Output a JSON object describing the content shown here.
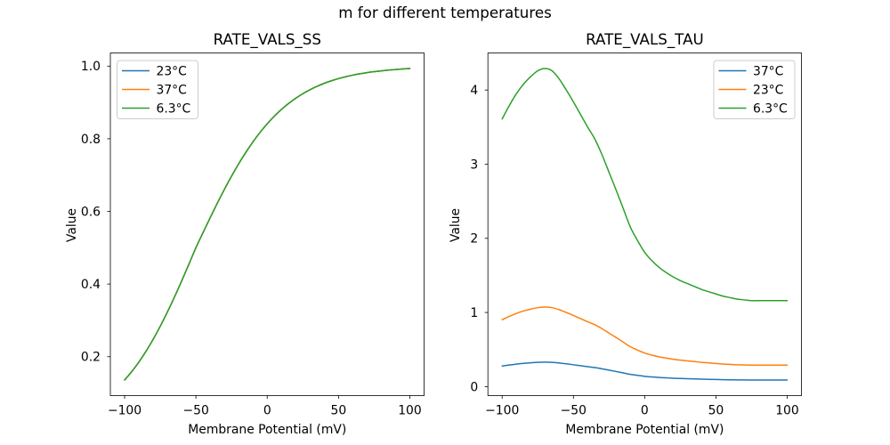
{
  "figure": {
    "suptitle": "m for different temperatures",
    "background": "#ffffff",
    "text_color": "#000000"
  },
  "chart_data": [
    {
      "type": "line",
      "title": "RATE_VALS_SS",
      "xlabel": "Membrane Potential (mV)",
      "ylabel": "Value",
      "xlim": [
        -110,
        110
      ],
      "ylim": [
        0.0928,
        1.0362
      ],
      "xticks": [
        -100,
        -50,
        0,
        50,
        100
      ],
      "xtick_labels": [
        "−100",
        "−50",
        "0",
        "50",
        "100"
      ],
      "yticks": [
        0.2,
        0.4,
        0.6,
        0.8,
        1.0
      ],
      "ytick_labels": [
        "0.2",
        "0.4",
        "0.6",
        "0.8",
        "1.0"
      ],
      "grid": false,
      "legend": {
        "loc": "upper left"
      },
      "x_start": -100,
      "x_step": 5,
      "series": [
        {
          "name": "23°C",
          "color": "#1f77b4",
          "values": [
            0.1357,
            0.1589,
            0.1852,
            0.2148,
            0.2477,
            0.2838,
            0.3229,
            0.3645,
            0.4084,
            0.4538,
            0.5,
            0.5416,
            0.5826,
            0.6225,
            0.6608,
            0.6971,
            0.731,
            0.7625,
            0.7914,
            0.8176,
            0.8411,
            0.8622,
            0.8808,
            0.8972,
            0.9116,
            0.9241,
            0.935,
            0.9444,
            0.9526,
            0.9596,
            0.9656,
            0.9707,
            0.9751,
            0.9788,
            0.982,
            0.9847,
            0.987,
            0.989,
            0.9907,
            0.9921,
            0.9933
          ]
        },
        {
          "name": "37°C",
          "color": "#ff7f0e",
          "values": [
            0.1357,
            0.1589,
            0.1852,
            0.2148,
            0.2477,
            0.2838,
            0.3229,
            0.3645,
            0.4084,
            0.4538,
            0.5,
            0.5416,
            0.5826,
            0.6225,
            0.6608,
            0.6971,
            0.731,
            0.7625,
            0.7914,
            0.8176,
            0.8411,
            0.8622,
            0.8808,
            0.8972,
            0.9116,
            0.9241,
            0.935,
            0.9444,
            0.9526,
            0.9596,
            0.9656,
            0.9707,
            0.9751,
            0.9788,
            0.982,
            0.9847,
            0.987,
            0.989,
            0.9907,
            0.9921,
            0.9933
          ]
        },
        {
          "name": "6.3°C",
          "color": "#2ca02c",
          "values": [
            0.1357,
            0.1589,
            0.1852,
            0.2148,
            0.2477,
            0.2838,
            0.3229,
            0.3645,
            0.4084,
            0.4538,
            0.5,
            0.5416,
            0.5826,
            0.6225,
            0.6608,
            0.6971,
            0.731,
            0.7625,
            0.7914,
            0.8176,
            0.8411,
            0.8622,
            0.8808,
            0.8972,
            0.9116,
            0.9241,
            0.935,
            0.9444,
            0.9526,
            0.9596,
            0.9656,
            0.9707,
            0.9751,
            0.9788,
            0.982,
            0.9847,
            0.987,
            0.989,
            0.9907,
            0.9921,
            0.9933
          ]
        }
      ]
    },
    {
      "type": "line",
      "title": "RATE_VALS_TAU",
      "xlabel": "Membrane Potential (mV)",
      "ylabel": "Value",
      "xlim": [
        -110,
        110
      ],
      "ylim": [
        -0.121,
        4.5
      ],
      "xticks": [
        -100,
        -50,
        0,
        50,
        100
      ],
      "xtick_labels": [
        "−100",
        "−50",
        "0",
        "50",
        "100"
      ],
      "yticks": [
        0,
        1,
        2,
        3,
        4
      ],
      "ytick_labels": [
        "0",
        "1",
        "2",
        "3",
        "4"
      ],
      "grid": false,
      "legend": {
        "loc": "upper right"
      },
      "x_start": -100,
      "x_step": 5,
      "series": [
        {
          "name": "37°C",
          "color": "#1f77b4",
          "values": [
            0.2777,
            0.2915,
            0.3038,
            0.3138,
            0.3215,
            0.3277,
            0.33,
            0.3277,
            0.3192,
            0.3077,
            0.2954,
            0.2823,
            0.2692,
            0.2569,
            0.2408,
            0.2223,
            0.2038,
            0.1846,
            0.1654,
            0.1515,
            0.1392,
            0.1308,
            0.1238,
            0.1185,
            0.1138,
            0.11,
            0.1069,
            0.1038,
            0.1008,
            0.0985,
            0.0962,
            0.0938,
            0.0923,
            0.0908,
            0.09,
            0.0892,
            0.0892,
            0.0892,
            0.0892,
            0.0892,
            0.0892
          ]
        },
        {
          "name": "23°C",
          "color": "#ff7f0e",
          "values": [
            0.9025,
            0.9475,
            0.9875,
            1.02,
            1.045,
            1.065,
            1.0725,
            1.065,
            1.0375,
            1.0,
            0.96,
            0.9175,
            0.875,
            0.835,
            0.7825,
            0.7225,
            0.6625,
            0.6,
            0.5375,
            0.4925,
            0.4525,
            0.425,
            0.4025,
            0.385,
            0.37,
            0.3575,
            0.3475,
            0.3375,
            0.3275,
            0.32,
            0.3125,
            0.305,
            0.3,
            0.295,
            0.2925,
            0.29,
            0.29,
            0.29,
            0.29,
            0.29,
            0.29
          ]
        },
        {
          "name": "6.3°C",
          "color": "#2ca02c",
          "values": [
            3.61,
            3.79,
            3.95,
            4.08,
            4.18,
            4.26,
            4.29,
            4.26,
            4.15,
            4.0,
            3.84,
            3.67,
            3.5,
            3.34,
            3.13,
            2.89,
            2.65,
            2.4,
            2.15,
            1.97,
            1.81,
            1.7,
            1.61,
            1.54,
            1.48,
            1.43,
            1.39,
            1.35,
            1.31,
            1.28,
            1.25,
            1.22,
            1.2,
            1.18,
            1.17,
            1.16,
            1.16,
            1.16,
            1.16,
            1.16,
            1.16
          ]
        }
      ]
    }
  ]
}
